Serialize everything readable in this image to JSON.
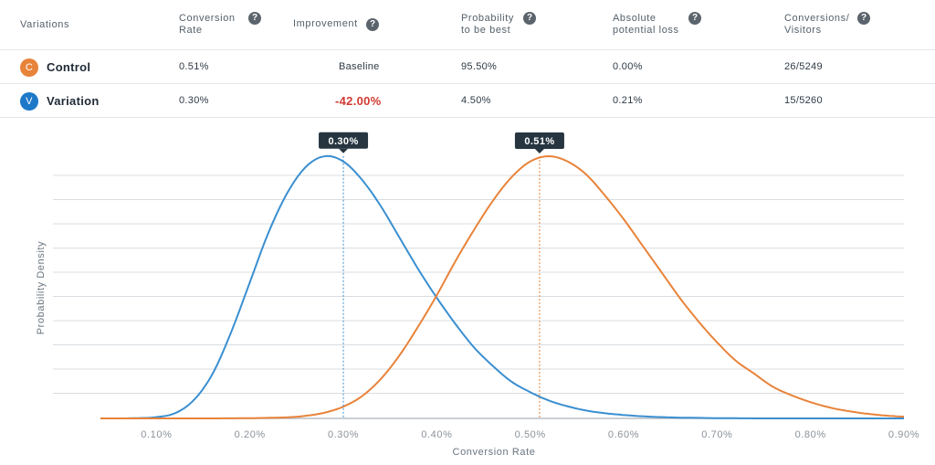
{
  "table": {
    "headers": {
      "variations": "Variations",
      "conversion_rate": "Conversion\nRate",
      "improvement": "Improvement",
      "probability": "Probability\nto be best",
      "loss": "Absolute\npotential loss",
      "conversions": "Conversions/\nVisitors"
    },
    "help_icon": "?",
    "rows": [
      {
        "badge": "C",
        "name": "Control",
        "conversion_rate": "0.51%",
        "improvement": "Baseline",
        "probability": "95.50%",
        "loss": "0.00%",
        "conversions": "26/5249",
        "color": "#e8833a"
      },
      {
        "badge": "V",
        "name": "Variation",
        "conversion_rate": "0.30%",
        "improvement": "-42.00%",
        "probability": "4.50%",
        "loss": "0.21%",
        "conversions": "15/5260",
        "color": "#1e78c8"
      }
    ]
  },
  "chart_data": {
    "type": "line",
    "xlabel": "Conversion Rate",
    "ylabel": "Probability Density",
    "xlim": [
      0.04,
      0.9
    ],
    "x_ticks": [
      "0.10%",
      "0.20%",
      "0.30%",
      "0.40%",
      "0.50%",
      "0.60%",
      "0.70%",
      "0.80%",
      "0.90%"
    ],
    "x_tick_values": [
      0.1,
      0.2,
      0.3,
      0.4,
      0.5,
      0.6,
      0.7,
      0.8,
      0.9
    ],
    "grid": true,
    "series": [
      {
        "name": "Variation",
        "color": "#3a8fd0",
        "marker_x": 0.3,
        "marker_label": "0.30%",
        "x": [
          0.04,
          0.06,
          0.08,
          0.1,
          0.12,
          0.14,
          0.16,
          0.18,
          0.2,
          0.22,
          0.24,
          0.26,
          0.28,
          0.3,
          0.32,
          0.34,
          0.36,
          0.38,
          0.4,
          0.42,
          0.44,
          0.46,
          0.48,
          0.5,
          0.52,
          0.54,
          0.56,
          0.58,
          0.6,
          0.62,
          0.64,
          0.66,
          0.68,
          0.7,
          0.75,
          0.8,
          0.85,
          0.9
        ],
        "y": [
          0,
          0,
          0.001,
          0.005,
          0.02,
          0.07,
          0.17,
          0.33,
          0.52,
          0.71,
          0.86,
          0.96,
          1.0,
          0.98,
          0.91,
          0.81,
          0.69,
          0.57,
          0.46,
          0.36,
          0.27,
          0.2,
          0.14,
          0.1,
          0.068,
          0.046,
          0.03,
          0.02,
          0.013,
          0.008,
          0.005,
          0.003,
          0.002,
          0.001,
          0,
          0,
          0,
          0
        ]
      },
      {
        "name": "Control",
        "color": "#e8833a",
        "marker_x": 0.51,
        "marker_label": "0.51%",
        "x": [
          0.04,
          0.1,
          0.15,
          0.2,
          0.24,
          0.26,
          0.28,
          0.3,
          0.32,
          0.34,
          0.36,
          0.38,
          0.4,
          0.42,
          0.44,
          0.46,
          0.48,
          0.5,
          0.52,
          0.54,
          0.56,
          0.58,
          0.6,
          0.62,
          0.64,
          0.66,
          0.68,
          0.7,
          0.72,
          0.74,
          0.76,
          0.78,
          0.8,
          0.82,
          0.84,
          0.86,
          0.88,
          0.9
        ],
        "y": [
          0,
          0,
          0,
          0.001,
          0.004,
          0.01,
          0.022,
          0.045,
          0.085,
          0.15,
          0.24,
          0.35,
          0.47,
          0.6,
          0.72,
          0.83,
          0.92,
          0.98,
          1.0,
          0.98,
          0.93,
          0.85,
          0.76,
          0.66,
          0.56,
          0.46,
          0.37,
          0.29,
          0.22,
          0.17,
          0.12,
          0.088,
          0.062,
          0.042,
          0.028,
          0.018,
          0.011,
          0.007
        ]
      }
    ]
  }
}
